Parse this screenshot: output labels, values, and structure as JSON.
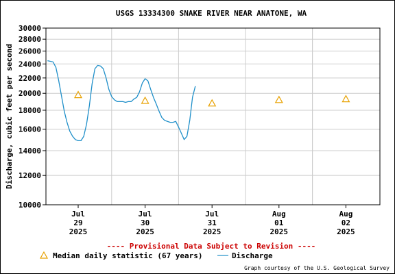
{
  "chart_data": {
    "type": "line",
    "title": "USGS 13334300 SNAKE RIVER NEAR ANATONE, WA",
    "ylabel": "Discharge, cubic feet per second",
    "xlabel": "",
    "y_scale": "log",
    "ylim": [
      10000,
      30000
    ],
    "y_ticks": [
      10000,
      12000,
      14000,
      16000,
      18000,
      20000,
      22000,
      24000,
      26000,
      28000,
      30000
    ],
    "x_ticks": [
      {
        "month": "Jul",
        "day": "29",
        "year": "2025"
      },
      {
        "month": "Jul",
        "day": "30",
        "year": "2025"
      },
      {
        "month": "Jul",
        "day": "31",
        "year": "2025"
      },
      {
        "month": "Aug",
        "day": "01",
        "year": "2025"
      },
      {
        "month": "Aug",
        "day": "02",
        "year": "2025"
      }
    ],
    "grid": true,
    "legend_position": "bottom",
    "colors": {
      "discharge": "#1f8fc9",
      "median": "#e8a100",
      "provisional": "#cc0000",
      "grid": "#cccccc"
    },
    "series": [
      {
        "name": "Discharge",
        "type": "line",
        "x": [
          "2025-07-28 00:00",
          "2025-07-28 01:00",
          "2025-07-28 02:00",
          "2025-07-28 03:00",
          "2025-07-28 04:00",
          "2025-07-28 05:00",
          "2025-07-28 06:00",
          "2025-07-28 07:00",
          "2025-07-28 08:00",
          "2025-07-28 09:00",
          "2025-07-28 10:00",
          "2025-07-28 11:00",
          "2025-07-28 12:00",
          "2025-07-28 13:00",
          "2025-07-28 14:00",
          "2025-07-28 15:00",
          "2025-07-28 16:00",
          "2025-07-28 17:00",
          "2025-07-28 18:00",
          "2025-07-28 19:00",
          "2025-07-28 20:00",
          "2025-07-28 21:00",
          "2025-07-28 22:00",
          "2025-07-28 23:00",
          "2025-07-29 00:00",
          "2025-07-29 01:00",
          "2025-07-29 02:00",
          "2025-07-29 03:00",
          "2025-07-29 04:00",
          "2025-07-29 05:00",
          "2025-07-29 06:00",
          "2025-07-29 07:00",
          "2025-07-29 08:00",
          "2025-07-29 09:00",
          "2025-07-29 10:00",
          "2025-07-29 11:00",
          "2025-07-29 12:00",
          "2025-07-29 13:00",
          "2025-07-29 14:00",
          "2025-07-29 15:00",
          "2025-07-29 16:00",
          "2025-07-29 17:00",
          "2025-07-29 18:00",
          "2025-07-29 19:00",
          "2025-07-29 20:00",
          "2025-07-29 21:00",
          "2025-07-29 22:00",
          "2025-07-29 23:00",
          "2025-07-30 00:00",
          "2025-07-30 01:00",
          "2025-07-30 02:00",
          "2025-07-30 03:00",
          "2025-07-30 04:00",
          "2025-07-30 05:00",
          "2025-07-30 06:00",
          "2025-07-30 07:00",
          "2025-07-30 08:00",
          "2025-07-30 09:00",
          "2025-07-30 10:00",
          "2025-07-30 11:00",
          "2025-07-30 12:00",
          "2025-07-30 13:00",
          "2025-07-30 14:00",
          "2025-07-30 15:00",
          "2025-07-30 16:00",
          "2025-07-30 17:00",
          "2025-07-30 18:00",
          "2025-07-30 19:00",
          "2025-07-30 20:00",
          "2025-07-30 21:00",
          "2025-07-30 22:00",
          "2025-07-30 23:00",
          "2025-07-31 00:00",
          "2025-07-31 01:00",
          "2025-07-31 02:00",
          "2025-07-31 03:00",
          "2025-07-31 04:00",
          "2025-07-31 05:00",
          "2025-07-31 06:00",
          "2025-07-31 07:00",
          "2025-07-31 08:00",
          "2025-07-31 09:00",
          "2025-07-31 10:00",
          "2025-07-31 11:00",
          "2025-07-31 12:00",
          "2025-07-31 13:00",
          "2025-07-31 14:00",
          "2025-07-31 15:00",
          "2025-07-31 16:00",
          "2025-07-31 17:00",
          "2025-07-31 18:00",
          "2025-07-31 19:00",
          "2025-07-31 20:00",
          "2025-07-31 21:00",
          "2025-07-31 22:00",
          "2025-07-31 23:00",
          "2025-08-01 00:00",
          "2025-08-01 01:00",
          "2025-08-01 02:00",
          "2025-08-01 03:00",
          "2025-08-01 04:00",
          "2025-08-01 05:00",
          "2025-08-01 06:00",
          "2025-08-01 07:00",
          "2025-08-01 08:00",
          "2025-08-01 09:00",
          "2025-08-01 10:00",
          "2025-08-01 11:00",
          "2025-08-01 12:00",
          "2025-08-01 13:00",
          "2025-08-01 14:00",
          "2025-08-01 15:00",
          "2025-08-01 16:00",
          "2025-08-01 17:00",
          "2025-08-01 18:00",
          "2025-08-01 19:00",
          "2025-08-01 20:00",
          "2025-08-01 21:00",
          "2025-08-01 22:00",
          "2025-08-01 23:00",
          "2025-08-02 00:00",
          "2025-08-02 01:00",
          "2025-08-02 02:00",
          "2025-08-02 03:00",
          "2025-08-02 04:00",
          "2025-08-02 05:00",
          "2025-08-02 06:00",
          "2025-08-02 07:00",
          "2025-08-02 08:00",
          "2025-08-02 09:00",
          "2025-08-02 10:00",
          "2025-08-02 11:00",
          "2025-08-02 12:00",
          "2025-08-02 13:00",
          "2025-08-02 14:00",
          "2025-08-02 15:00",
          "2025-08-02 16:00",
          "2025-08-02 17:00",
          "2025-08-02 18:00",
          "2025-08-02 19:00",
          "2025-08-02 20:00",
          "2025-08-02 21:00",
          "2025-08-02 22:00",
          "2025-08-02 23:00"
        ],
        "y": [
          19300,
          21500,
          23200,
          24100,
          24400,
          24500,
          24300,
          23500,
          21800,
          19800,
          18300,
          17400,
          17000,
          16900,
          16900,
          16900,
          16900,
          16800,
          16800,
          16900,
          17000,
          17800,
          19700,
          22300,
          24000,
          24500,
          24400,
          24300,
          23500,
          21700,
          19700,
          17900,
          16700,
          15800,
          15300,
          15000,
          14900,
          14900,
          15300,
          16500,
          18500,
          21200,
          23300,
          23800,
          23700,
          23300,
          22000,
          20500,
          19600,
          19200,
          19000,
          19000,
          19000,
          18900,
          19000,
          19000,
          19300,
          19500,
          20200,
          21300,
          21900,
          21600,
          20500,
          19500,
          18700,
          17900,
          17200,
          16900,
          16800,
          16700,
          16700,
          16800,
          16200,
          15600,
          15000,
          15300,
          16900,
          19500,
          20900,
          null,
          null,
          null,
          null,
          null,
          null,
          null,
          null,
          null,
          null,
          null,
          null,
          null,
          null,
          null,
          null,
          null,
          null,
          null,
          null,
          null,
          null,
          null,
          null,
          null,
          null,
          null,
          null,
          null,
          null,
          null,
          null,
          null,
          null,
          null,
          null,
          null,
          null,
          null,
          null,
          null,
          null,
          null,
          null,
          null,
          null,
          null,
          null,
          null,
          null,
          null,
          null,
          null,
          null,
          null,
          null,
          null,
          null,
          null,
          null,
          null,
          null,
          null,
          null,
          null
        ]
      },
      {
        "name": "Median daily statistic (67 years)",
        "type": "scatter",
        "x": [
          "2025-07-29",
          "2025-07-30",
          "2025-07-31",
          "2025-08-01",
          "2025-08-02"
        ],
        "y": [
          19800,
          19100,
          18800,
          19200,
          19300
        ]
      }
    ]
  },
  "ui": {
    "title": "USGS 13334300 SNAKE RIVER NEAR ANATONE, WA",
    "provisional_notice": "---- Provisional Data Subject to Revision ----",
    "legend_median_label": "Median daily statistic (67 years)",
    "legend_discharge_label": "Discharge",
    "credit": "Graph courtesy of the U.S. Geological Survey"
  }
}
